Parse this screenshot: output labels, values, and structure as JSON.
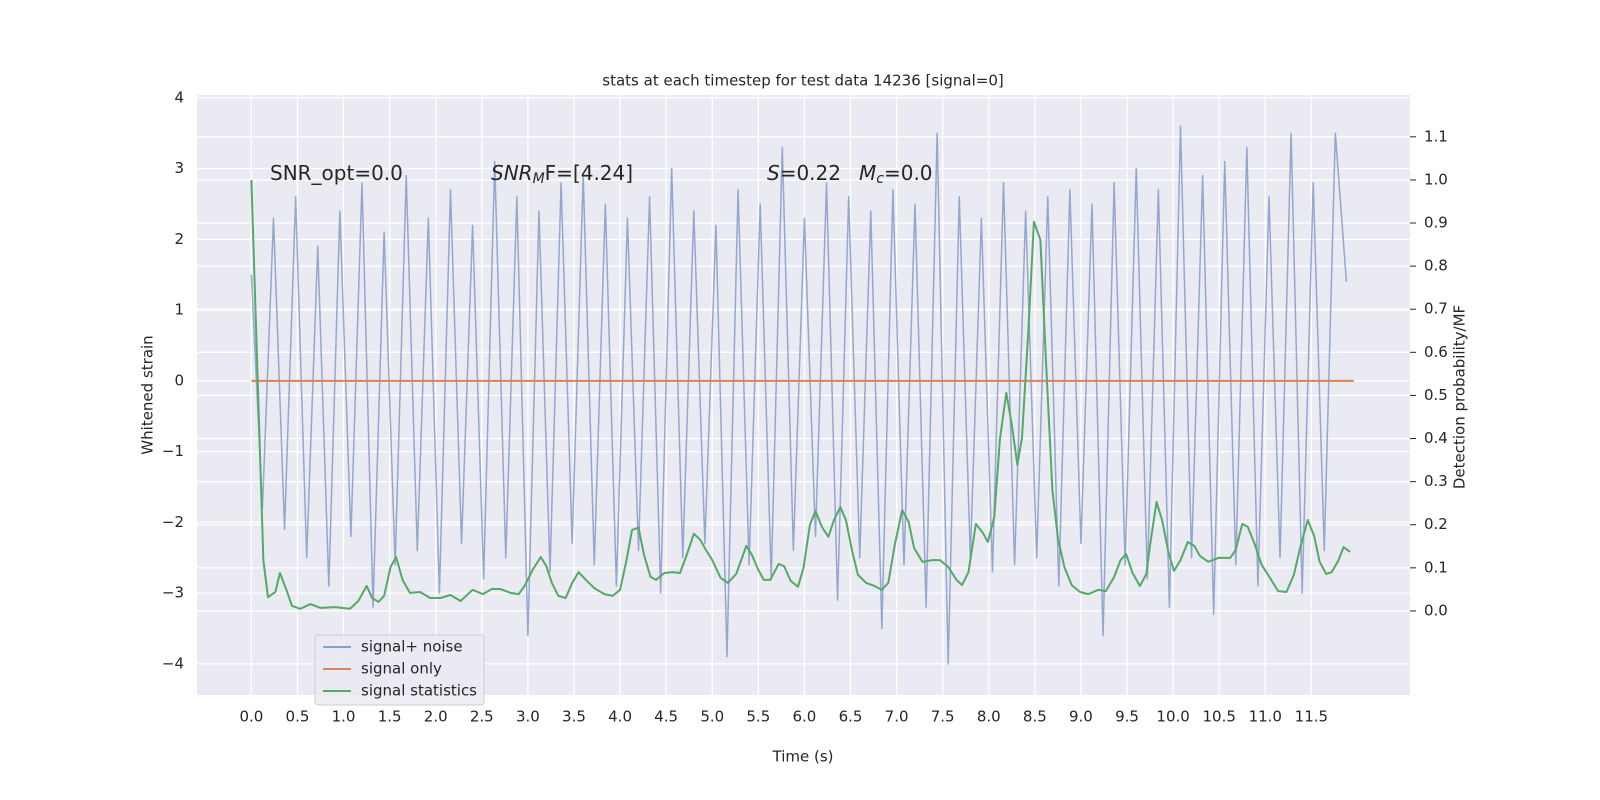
{
  "chart_data": {
    "type": "line",
    "title": "stats at each timestep for test data 14236 [signal=0]",
    "xlabel": "Time (s)",
    "ylabel": "Whitened strain",
    "y2label": "Detection probability/MF",
    "annotations": [
      {
        "text": "SNR_opt=0.0"
      },
      {
        "text": "SNR",
        "sub": "M",
        "tail": "F=[4.24]"
      },
      {
        "text": "S",
        "tail": "=0.22"
      },
      {
        "text": "M",
        "sub": "c",
        "tail": "=0.0"
      }
    ],
    "xlim": [
      -0.59,
      12.57
    ],
    "ylim": [
      -4.44,
      4.04
    ],
    "y2lim": [
      -0.195,
      1.197
    ],
    "xticks": [
      {
        "value": 0,
        "label": "0.0"
      },
      0.5,
      {
        "value": 1,
        "label": "1.0"
      },
      1.5,
      {
        "value": 2,
        "label": "2.0"
      },
      2.5,
      {
        "value": 3,
        "label": "3.0"
      },
      3.5,
      {
        "value": 4,
        "label": "4.0"
      },
      4.5,
      {
        "value": 5,
        "label": "5.0"
      },
      5.5,
      {
        "value": 6,
        "label": "6.0"
      },
      6.5,
      {
        "value": 7,
        "label": "7.0"
      },
      7.5,
      {
        "value": 8,
        "label": "8.0"
      },
      8.5,
      {
        "value": 9,
        "label": "9.0"
      },
      9.5,
      {
        "value": 10,
        "label": "10.0"
      },
      10.5,
      {
        "value": 11,
        "label": "11.0"
      },
      11.5
    ],
    "yticks": [
      {
        "value": -4,
        "label": "−4"
      },
      {
        "value": -3,
        "label": "−3"
      },
      {
        "value": -2,
        "label": "−2"
      },
      {
        "value": -1,
        "label": "−1"
      },
      0,
      1,
      2,
      3,
      4
    ],
    "y2ticks": [
      {
        "value": 0,
        "label": "0.0"
      },
      0.1,
      0.2,
      0.3,
      0.4,
      0.5,
      0.6,
      0.7,
      0.8,
      0.9,
      {
        "value": 1,
        "label": "1.0"
      },
      1.1
    ],
    "grid": true,
    "legend": "lower left",
    "series": [
      {
        "name": "signal+ noise",
        "color": "#8c9fcb",
        "x": [
          0,
          0.12,
          0.24,
          0.36,
          0.48,
          0.6,
          0.72,
          0.84,
          0.96,
          1.08,
          1.2,
          1.32,
          1.44,
          1.56,
          1.68,
          1.8,
          1.92,
          2.04,
          2.16,
          2.28,
          2.4,
          2.52,
          2.64,
          2.76,
          2.88,
          3.0,
          3.12,
          3.24,
          3.36,
          3.48,
          3.6,
          3.72,
          3.84,
          3.96,
          4.08,
          4.2,
          4.32,
          4.44,
          4.56,
          4.68,
          4.8,
          4.92,
          5.04,
          5.16,
          5.28,
          5.4,
          5.52,
          5.64,
          5.76,
          5.88,
          6.0,
          6.12,
          6.24,
          6.36,
          6.48,
          6.6,
          6.72,
          6.84,
          6.96,
          7.08,
          7.2,
          7.32,
          7.44,
          7.56,
          7.68,
          7.8,
          7.92,
          8.04,
          8.16,
          8.28,
          8.4,
          8.52,
          8.64,
          8.76,
          8.88,
          9.0,
          9.12,
          9.24,
          9.36,
          9.48,
          9.6,
          9.72,
          9.84,
          9.96,
          10.08,
          10.2,
          10.32,
          10.44,
          10.56,
          10.68,
          10.8,
          10.92,
          11.04,
          11.16,
          11.28,
          11.4,
          11.52,
          11.64,
          11.76,
          11.88
        ],
        "values": [
          1.5,
          -1.8,
          2.3,
          -2.1,
          2.6,
          -2.5,
          1.9,
          -2.9,
          2.4,
          -2.2,
          2.8,
          -3.2,
          2.1,
          -2.6,
          2.9,
          -2.4,
          2.3,
          -3.0,
          2.7,
          -2.3,
          2.2,
          -2.8,
          3.1,
          -2.5,
          2.6,
          -3.6,
          2.4,
          -2.7,
          2.8,
          -2.3,
          2.9,
          -2.6,
          2.5,
          -2.9,
          2.3,
          -2.4,
          2.6,
          -3.0,
          3.0,
          -2.5,
          2.4,
          -2.3,
          2.2,
          -3.9,
          2.7,
          -2.6,
          2.5,
          -2.8,
          3.3,
          -2.4,
          2.3,
          -2.2,
          2.8,
          -3.1,
          2.6,
          -2.5,
          2.4,
          -3.5,
          2.7,
          -2.6,
          2.5,
          -3.2,
          3.5,
          -4.0,
          2.6,
          -2.5,
          2.3,
          -2.7,
          2.8,
          -2.6,
          2.4,
          -2.5,
          2.6,
          -2.9,
          2.7,
          -2.3,
          2.5,
          -3.6,
          2.8,
          -2.6,
          3.0,
          -2.8,
          2.7,
          -3.2,
          3.6,
          -2.5,
          2.9,
          -3.3,
          3.1,
          -2.6,
          3.3,
          -2.9,
          2.6,
          -2.5,
          3.5,
          -3.0,
          2.8,
          -2.4,
          3.5,
          1.4
        ]
      },
      {
        "name": "signal only",
        "color": "#dd8452",
        "x": [
          0,
          11.96
        ],
        "values": [
          0,
          0
        ]
      },
      {
        "name": "signal statistics",
        "color": "#55a868",
        "axis": "y2",
        "x": [
          0,
          0.13,
          0.18,
          0.26,
          0.31,
          0.38,
          0.44,
          0.53,
          0.64,
          0.75,
          0.91,
          1.07,
          1.16,
          1.25,
          1.31,
          1.38,
          1.44,
          1.51,
          1.57,
          1.64,
          1.72,
          1.83,
          1.94,
          2.05,
          2.16,
          2.27,
          2.4,
          2.51,
          2.61,
          2.7,
          2.81,
          2.9,
          2.97,
          3.05,
          3.14,
          3.2,
          3.26,
          3.33,
          3.41,
          3.48,
          3.55,
          3.63,
          3.72,
          3.83,
          3.92,
          4.0,
          4.07,
          4.13,
          4.2,
          4.26,
          4.33,
          4.39,
          4.48,
          4.57,
          4.65,
          4.72,
          4.8,
          4.87,
          4.93,
          5.0,
          5.09,
          5.17,
          5.26,
          5.37,
          5.43,
          5.5,
          5.56,
          5.63,
          5.72,
          5.78,
          5.85,
          5.93,
          5.99,
          6.06,
          6.12,
          6.19,
          6.26,
          6.32,
          6.39,
          6.45,
          6.52,
          6.58,
          6.67,
          6.76,
          6.84,
          6.91,
          6.98,
          7.06,
          7.13,
          7.19,
          7.28,
          7.39,
          7.47,
          7.56,
          7.65,
          7.71,
          7.78,
          7.86,
          7.93,
          7.99,
          8.06,
          8.12,
          8.19,
          8.25,
          8.31,
          8.36,
          8.43,
          8.49,
          8.56,
          8.62,
          8.69,
          8.75,
          8.82,
          8.9,
          8.99,
          9.08,
          9.19,
          9.27,
          9.36,
          9.43,
          9.49,
          9.56,
          9.64,
          9.71,
          9.75,
          9.82,
          9.88,
          9.95,
          10.01,
          10.08,
          10.16,
          10.23,
          10.29,
          10.38,
          10.49,
          10.62,
          10.68,
          10.75,
          10.81,
          10.88,
          10.96,
          11.05,
          11.14,
          11.23,
          11.31,
          11.38,
          11.46,
          11.53,
          11.59,
          11.66,
          11.72,
          11.79,
          11.85,
          11.92
        ],
        "values": [
          1.0,
          0.118,
          0.032,
          0.044,
          0.088,
          0.049,
          0.012,
          0.005,
          0.016,
          0.007,
          0.009,
          0.005,
          0.023,
          0.058,
          0.03,
          0.021,
          0.035,
          0.102,
          0.125,
          0.072,
          0.042,
          0.044,
          0.03,
          0.03,
          0.037,
          0.023,
          0.049,
          0.039,
          0.051,
          0.051,
          0.042,
          0.039,
          0.06,
          0.095,
          0.125,
          0.104,
          0.065,
          0.035,
          0.03,
          0.065,
          0.09,
          0.072,
          0.053,
          0.039,
          0.035,
          0.049,
          0.118,
          0.188,
          0.193,
          0.13,
          0.079,
          0.072,
          0.088,
          0.09,
          0.088,
          0.128,
          0.179,
          0.165,
          0.142,
          0.118,
          0.077,
          0.065,
          0.086,
          0.151,
          0.13,
          0.095,
          0.072,
          0.072,
          0.109,
          0.104,
          0.07,
          0.056,
          0.1,
          0.2,
          0.232,
          0.195,
          0.172,
          0.211,
          0.241,
          0.211,
          0.137,
          0.084,
          0.065,
          0.058,
          0.049,
          0.065,
          0.153,
          0.234,
          0.207,
          0.146,
          0.114,
          0.118,
          0.118,
          0.102,
          0.072,
          0.06,
          0.09,
          0.202,
          0.183,
          0.16,
          0.218,
          0.397,
          0.506,
          0.432,
          0.339,
          0.401,
          0.652,
          0.903,
          0.861,
          0.582,
          0.281,
          0.169,
          0.102,
          0.06,
          0.044,
          0.039,
          0.049,
          0.046,
          0.079,
          0.118,
          0.132,
          0.088,
          0.058,
          0.086,
          0.153,
          0.253,
          0.211,
          0.135,
          0.093,
          0.118,
          0.16,
          0.151,
          0.128,
          0.114,
          0.123,
          0.123,
          0.142,
          0.202,
          0.195,
          0.158,
          0.107,
          0.077,
          0.046,
          0.044,
          0.084,
          0.148,
          0.211,
          0.174,
          0.114,
          0.086,
          0.09,
          0.116,
          0.148,
          0.137
        ]
      }
    ]
  }
}
